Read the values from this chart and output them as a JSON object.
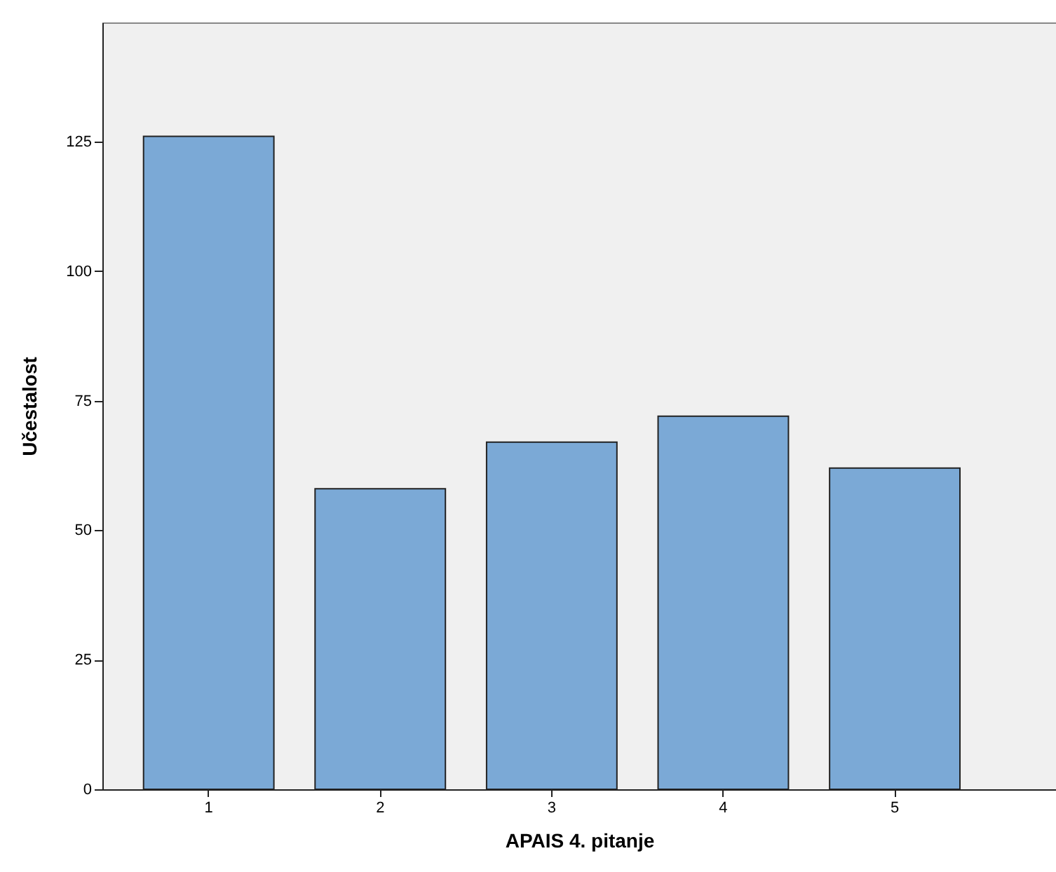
{
  "chart_data": {
    "type": "bar",
    "xlabel": "APAIS 4. pitanje",
    "ylabel": "Učestalost",
    "categories": [
      "1",
      "2",
      "3",
      "4",
      "5"
    ],
    "values": [
      126,
      58,
      67,
      72,
      62
    ],
    "color": "#7ba9d6",
    "ylim": [
      0,
      148
    ],
    "yticks": [
      0,
      25,
      50,
      75,
      100,
      125
    ],
    "grid": false
  }
}
